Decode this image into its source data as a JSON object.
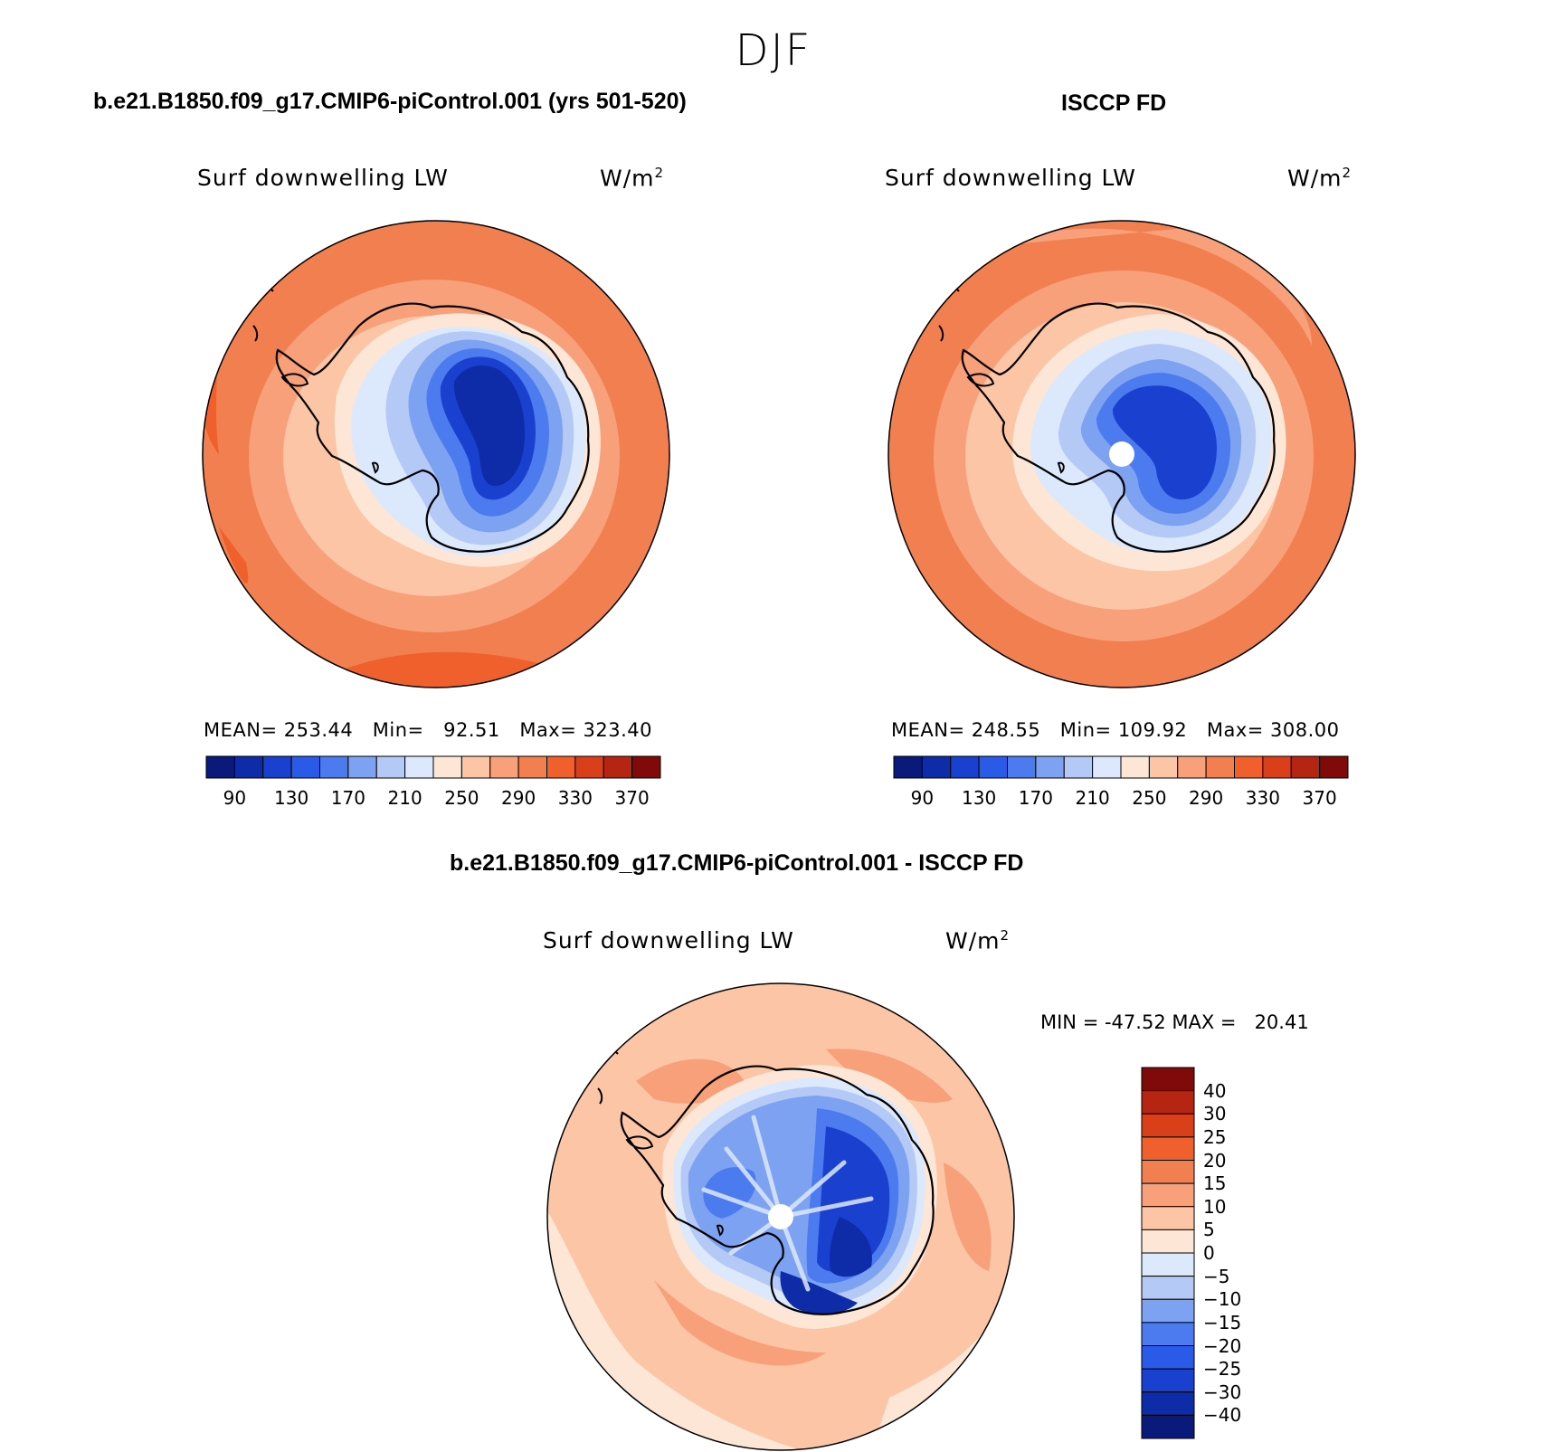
{
  "figure": {
    "season": "DJF"
  },
  "panels": [
    {
      "title": "b.e21.B1850.f09_g17.CMIP6-piControl.001 (yrs 501-520)",
      "variable": "Surf downwelling LW",
      "units_base": "W/m",
      "units_exp": "2",
      "stats": {
        "mean_label": "MEAN=",
        "mean": "253.44",
        "min_label": "Min=",
        "min": "92.51",
        "max_label": "Max=",
        "max": "323.40"
      }
    },
    {
      "title": "ISCCP FD",
      "variable": "Surf downwelling LW",
      "units_base": "W/m",
      "units_exp": "2",
      "stats": {
        "mean_label": "MEAN=",
        "mean": "248.55",
        "min_label": "Min=",
        "min": "109.92",
        "max_label": "Max=",
        "max": "308.00"
      }
    }
  ],
  "colorbar": {
    "colors": [
      "#0a1a7a",
      "#0f2ca8",
      "#1a40cf",
      "#2a5ae8",
      "#4b7bef",
      "#7ea2f2",
      "#b4c9f5",
      "#dce8fb",
      "#fde6d6",
      "#fbc5a6",
      "#f7a07a",
      "#f27f4f",
      "#f0602c",
      "#d9401a",
      "#b52512",
      "#800a0a"
    ],
    "tick_labels": [
      "90",
      "130",
      "170",
      "210",
      "250",
      "290",
      "330",
      "370"
    ]
  },
  "difference": {
    "title": "b.e21.B1850.f09_g17.CMIP6-piControl.001 - ISCCP FD",
    "variable": "Surf downwelling LW",
    "units_base": "W/m",
    "units_exp": "2",
    "min_label": "MIN =",
    "min": "-47.52",
    "max_label": "MAX =",
    "max": "20.41",
    "colorbar_colors_top_to_bottom": [
      "#800a0a",
      "#b52512",
      "#d9401a",
      "#f0602c",
      "#f27f4f",
      "#f7a07a",
      "#fbc5a6",
      "#fde6d6",
      "#dce8fb",
      "#b4c9f5",
      "#7ea2f2",
      "#4b7bef",
      "#2a5ae8",
      "#1a40cf",
      "#0f2ca8",
      "#0a1a7a"
    ],
    "colorbar_ticks_top_to_bottom": [
      "40",
      "30",
      "25",
      "20",
      "15",
      "10",
      "5",
      "0",
      "-5",
      "-10",
      "-15",
      "-20",
      "-25",
      "-30",
      "-40"
    ]
  }
}
